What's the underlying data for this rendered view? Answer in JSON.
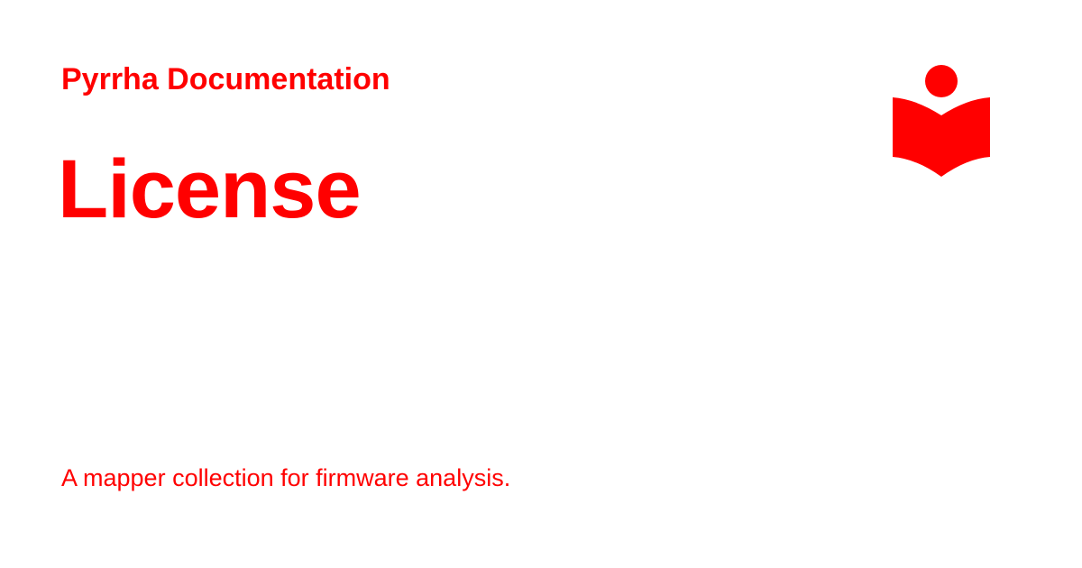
{
  "site": {
    "name": "Pyrrha Documentation"
  },
  "page": {
    "title": "License",
    "description": "A mapper collection for firmware analysis."
  },
  "logo": {
    "icon": "book-reader-icon"
  },
  "colors": {
    "accent": "#ff0000",
    "background": "#ffffff"
  }
}
